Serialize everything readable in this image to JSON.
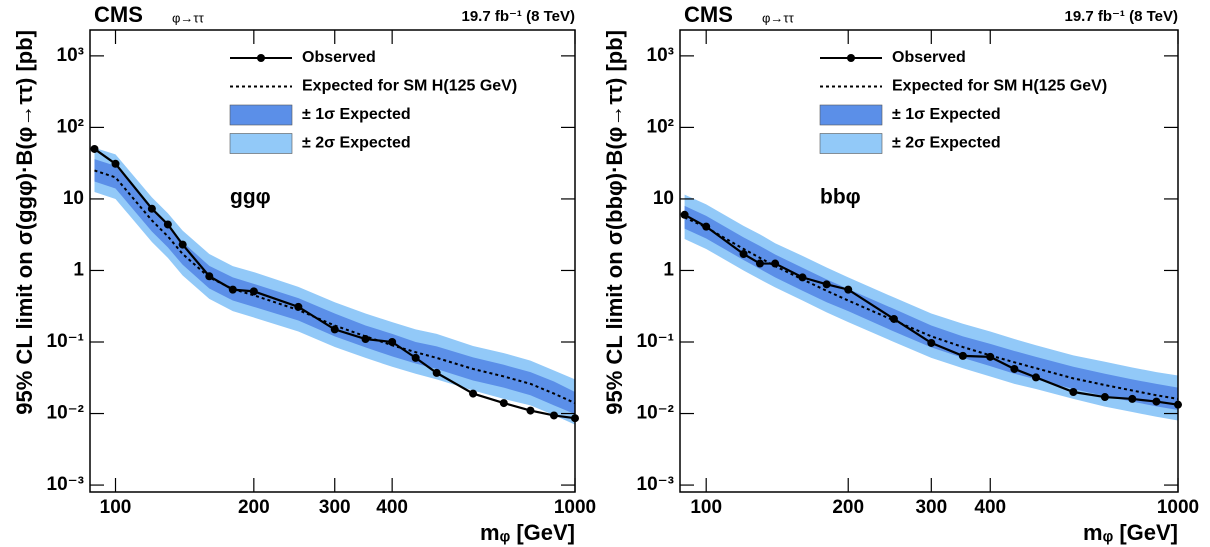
{
  "chart_data": [
    {
      "type": "line",
      "title": "CMS",
      "subtitle": "φ→ττ",
      "lumi_label": "19.7 fb⁻¹ (8 TeV)",
      "annotation": "ggφ",
      "x_label": "mᵩ [GeV]",
      "y_label": "95% CL limit on σ(ggφ)·B(φ→ττ) [pb]",
      "xlog": true,
      "ylog": true,
      "grid": false,
      "legend": "top-right",
      "xlim": [
        88,
        1000
      ],
      "ylim": [
        0.0008,
        2300
      ],
      "xticks": [
        100,
        200,
        300,
        400,
        1000
      ],
      "yticks": [
        {
          "value": 0.001,
          "label": "10⁻³"
        },
        {
          "value": 0.01,
          "label": "10⁻²"
        },
        {
          "value": 0.1,
          "label": "10⁻¹"
        },
        1,
        10,
        {
          "value": 100,
          "label": "10²"
        },
        {
          "value": 1000,
          "label": "10³"
        }
      ],
      "x": [
        90,
        100,
        120,
        130,
        140,
        160,
        180,
        200,
        250,
        300,
        350,
        400,
        450,
        500,
        600,
        700,
        800,
        900,
        1000
      ],
      "series": [
        {
          "name": "Observed",
          "color": "#000000",
          "line_style": "solid",
          "marker": "circle",
          "values": [
            50,
            31,
            7.3,
            4.4,
            2.3,
            0.83,
            0.54,
            0.51,
            0.31,
            0.15,
            0.11,
            0.1,
            0.06,
            0.037,
            0.019,
            0.014,
            0.011,
            0.0094,
            0.0086
          ]
        },
        {
          "name": "Expected for SM H(125 GeV)",
          "color": "#000000",
          "line_style": "dotted",
          "values": [
            25,
            20,
            5,
            3,
            1.7,
            0.8,
            0.55,
            0.45,
            0.28,
            0.17,
            0.12,
            0.09,
            0.072,
            0.06,
            0.042,
            0.033,
            0.026,
            0.019,
            0.014
          ]
        },
        {
          "name": "± 1σ Expected",
          "color": "#5b8fe8",
          "line_style": "band",
          "low": [
            17.5,
            14,
            3.5,
            2.1,
            1.2,
            0.56,
            0.38,
            0.31,
            0.2,
            0.12,
            0.084,
            0.063,
            0.05,
            0.042,
            0.029,
            0.023,
            0.018,
            0.013,
            0.0098
          ],
          "high": [
            36,
            29,
            7.3,
            4.4,
            2.5,
            1.16,
            0.8,
            0.65,
            0.41,
            0.25,
            0.17,
            0.13,
            0.1,
            0.087,
            0.061,
            0.048,
            0.038,
            0.028,
            0.02
          ]
        },
        {
          "name": "± 2σ Expected",
          "color": "#92c9f8",
          "line_style": "band",
          "low": [
            12.5,
            10,
            2.5,
            1.5,
            0.85,
            0.4,
            0.27,
            0.22,
            0.14,
            0.085,
            0.06,
            0.045,
            0.036,
            0.03,
            0.021,
            0.016,
            0.013,
            0.0095,
            0.007
          ],
          "high": [
            52,
            42,
            10.5,
            6.3,
            3.6,
            1.7,
            1.15,
            0.95,
            0.59,
            0.36,
            0.25,
            0.19,
            0.15,
            0.13,
            0.088,
            0.07,
            0.055,
            0.04,
            0.03
          ]
        }
      ]
    },
    {
      "type": "line",
      "title": "CMS",
      "subtitle": "φ→ττ",
      "lumi_label": "19.7 fb⁻¹ (8 TeV)",
      "annotation": "bbφ",
      "x_label": "mᵩ [GeV]",
      "y_label": "95% CL limit on σ(bbφ)·B(φ→ττ) [pb]",
      "xlog": true,
      "ylog": true,
      "grid": false,
      "legend": "top-right",
      "xlim": [
        88,
        1000
      ],
      "ylim": [
        0.0008,
        2300
      ],
      "xticks": [
        100,
        200,
        300,
        400,
        1000
      ],
      "yticks": [
        {
          "value": 0.001,
          "label": "10⁻³"
        },
        {
          "value": 0.01,
          "label": "10⁻²"
        },
        {
          "value": 0.1,
          "label": "10⁻¹"
        },
        1,
        10,
        {
          "value": 100,
          "label": "10²"
        },
        {
          "value": 1000,
          "label": "10³"
        }
      ],
      "x": [
        90,
        100,
        120,
        130,
        140,
        160,
        180,
        200,
        250,
        300,
        350,
        400,
        450,
        500,
        600,
        700,
        800,
        900,
        1000
      ],
      "series": [
        {
          "name": "Observed",
          "color": "#000000",
          "line_style": "solid",
          "marker": "circle",
          "values": [
            6,
            4.1,
            1.7,
            1.25,
            1.25,
            0.8,
            0.64,
            0.54,
            0.21,
            0.097,
            0.064,
            0.062,
            0.042,
            0.032,
            0.02,
            0.017,
            0.016,
            0.0147,
            0.0133
          ]
        },
        {
          "name": "Expected for SM H(125 GeV)",
          "color": "#000000",
          "line_style": "dotted",
          "values": [
            5.5,
            4,
            2,
            1.5,
            1.15,
            0.75,
            0.52,
            0.38,
            0.2,
            0.12,
            0.085,
            0.065,
            0.052,
            0.043,
            0.031,
            0.025,
            0.021,
            0.018,
            0.016
          ]
        },
        {
          "name": "± 1σ Expected",
          "color": "#5b8fe8",
          "line_style": "band",
          "low": [
            3.85,
            2.8,
            1.4,
            1.05,
            0.8,
            0.52,
            0.36,
            0.27,
            0.14,
            0.084,
            0.06,
            0.046,
            0.036,
            0.03,
            0.022,
            0.0175,
            0.0147,
            0.0126,
            0.0112
          ],
          "high": [
            8,
            5.8,
            2.9,
            2.2,
            1.67,
            1.09,
            0.75,
            0.55,
            0.29,
            0.17,
            0.12,
            0.094,
            0.075,
            0.062,
            0.045,
            0.036,
            0.03,
            0.026,
            0.023
          ]
        },
        {
          "name": "± 2σ Expected",
          "color": "#92c9f8",
          "line_style": "band",
          "low": [
            2.75,
            2,
            1,
            0.75,
            0.58,
            0.38,
            0.26,
            0.19,
            0.1,
            0.06,
            0.043,
            0.033,
            0.026,
            0.022,
            0.016,
            0.0125,
            0.0105,
            0.009,
            0.008
          ],
          "high": [
            11.5,
            8.4,
            4.2,
            3.2,
            2.4,
            1.6,
            1.1,
            0.8,
            0.42,
            0.25,
            0.18,
            0.14,
            0.11,
            0.09,
            0.065,
            0.053,
            0.044,
            0.038,
            0.034
          ]
        }
      ]
    }
  ]
}
